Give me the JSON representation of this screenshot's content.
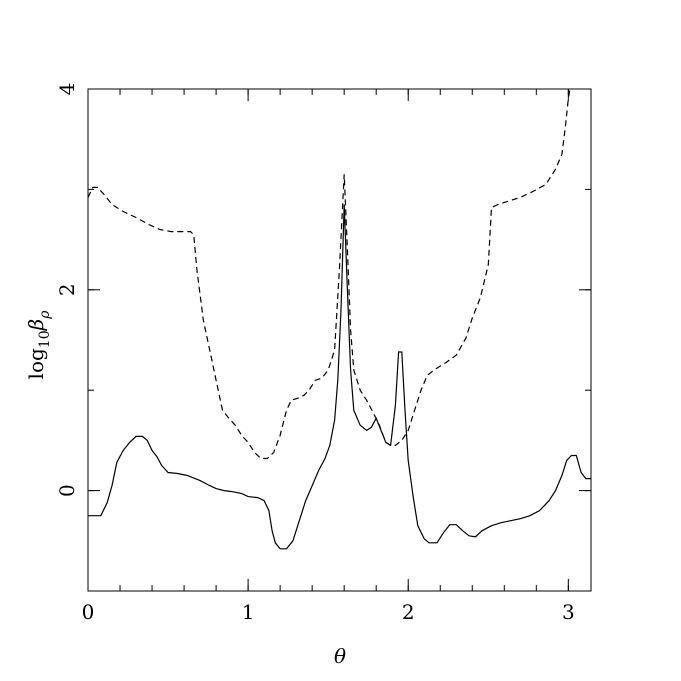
{
  "chart_data": {
    "type": "line",
    "xlabel": "θ",
    "ylabel": "log10βρ",
    "ylabel_parts": {
      "base": "log",
      "sub1": "10",
      "main": "β",
      "sub2": "ρ"
    },
    "xlim": [
      0,
      3.14159
    ],
    "ylim": [
      -1,
      4
    ],
    "x_ticks_major": [
      0,
      1,
      2,
      3
    ],
    "x_tick_labels": [
      "0",
      "1",
      "2",
      "3"
    ],
    "x_ticks_minor_step": 0.2,
    "y_ticks_major": [
      0,
      2,
      4
    ],
    "y_tick_labels": [
      "0",
      "2",
      "4"
    ],
    "y_ticks_minor_step": 1,
    "grid": false,
    "series": [
      {
        "style": "solid",
        "points": [
          [
            0.0,
            -0.25
          ],
          [
            0.08,
            -0.25
          ],
          [
            0.12,
            -0.12
          ],
          [
            0.15,
            0.05
          ],
          [
            0.18,
            0.28
          ],
          [
            0.22,
            0.4
          ],
          [
            0.26,
            0.48
          ],
          [
            0.3,
            0.54
          ],
          [
            0.34,
            0.54
          ],
          [
            0.37,
            0.5
          ],
          [
            0.4,
            0.4
          ],
          [
            0.43,
            0.34
          ],
          [
            0.46,
            0.25
          ],
          [
            0.5,
            0.18
          ],
          [
            0.56,
            0.17
          ],
          [
            0.62,
            0.15
          ],
          [
            0.7,
            0.1
          ],
          [
            0.76,
            0.05
          ],
          [
            0.8,
            0.02
          ],
          [
            0.85,
            0.0
          ],
          [
            0.9,
            -0.01
          ],
          [
            0.96,
            -0.03
          ],
          [
            1.0,
            -0.06
          ],
          [
            1.06,
            -0.07
          ],
          [
            1.1,
            -0.1
          ],
          [
            1.13,
            -0.2
          ],
          [
            1.15,
            -0.4
          ],
          [
            1.17,
            -0.52
          ],
          [
            1.2,
            -0.58
          ],
          [
            1.24,
            -0.58
          ],
          [
            1.28,
            -0.5
          ],
          [
            1.32,
            -0.3
          ],
          [
            1.36,
            -0.1
          ],
          [
            1.4,
            0.05
          ],
          [
            1.44,
            0.2
          ],
          [
            1.48,
            0.32
          ],
          [
            1.51,
            0.45
          ],
          [
            1.54,
            0.7
          ],
          [
            1.56,
            1.1
          ],
          [
            1.58,
            1.8
          ],
          [
            1.6,
            2.85
          ],
          [
            1.62,
            2.0
          ],
          [
            1.64,
            1.2
          ],
          [
            1.66,
            0.8
          ],
          [
            1.7,
            0.65
          ],
          [
            1.74,
            0.6
          ],
          [
            1.77,
            0.63
          ],
          [
            1.8,
            0.72
          ],
          [
            1.83,
            0.6
          ],
          [
            1.86,
            0.48
          ],
          [
            1.89,
            0.45
          ],
          [
            1.92,
            0.85
          ],
          [
            1.94,
            1.38
          ],
          [
            1.96,
            1.38
          ],
          [
            1.98,
            0.8
          ],
          [
            2.0,
            0.3
          ],
          [
            2.03,
            -0.05
          ],
          [
            2.06,
            -0.35
          ],
          [
            2.1,
            -0.48
          ],
          [
            2.13,
            -0.52
          ],
          [
            2.18,
            -0.52
          ],
          [
            2.22,
            -0.42
          ],
          [
            2.26,
            -0.34
          ],
          [
            2.3,
            -0.34
          ],
          [
            2.34,
            -0.4
          ],
          [
            2.38,
            -0.45
          ],
          [
            2.42,
            -0.46
          ],
          [
            2.46,
            -0.4
          ],
          [
            2.52,
            -0.35
          ],
          [
            2.58,
            -0.32
          ],
          [
            2.64,
            -0.3
          ],
          [
            2.7,
            -0.28
          ],
          [
            2.76,
            -0.25
          ],
          [
            2.82,
            -0.2
          ],
          [
            2.88,
            -0.1
          ],
          [
            2.92,
            0.0
          ],
          [
            2.96,
            0.15
          ],
          [
            2.99,
            0.3
          ],
          [
            3.02,
            0.35
          ],
          [
            3.05,
            0.35
          ],
          [
            3.08,
            0.18
          ],
          [
            3.11,
            0.12
          ],
          [
            3.14159,
            0.12
          ]
        ]
      },
      {
        "style": "dashed",
        "points": [
          [
            0.0,
            2.92
          ],
          [
            0.03,
            3.02
          ],
          [
            0.06,
            3.02
          ],
          [
            0.1,
            2.95
          ],
          [
            0.15,
            2.85
          ],
          [
            0.22,
            2.78
          ],
          [
            0.3,
            2.72
          ],
          [
            0.38,
            2.65
          ],
          [
            0.45,
            2.6
          ],
          [
            0.52,
            2.58
          ],
          [
            0.58,
            2.58
          ],
          [
            0.64,
            2.58
          ],
          [
            0.66,
            2.55
          ],
          [
            0.68,
            2.2
          ],
          [
            0.72,
            1.7
          ],
          [
            0.76,
            1.4
          ],
          [
            0.8,
            1.1
          ],
          [
            0.84,
            0.8
          ],
          [
            0.88,
            0.72
          ],
          [
            0.92,
            0.65
          ],
          [
            0.96,
            0.55
          ],
          [
            1.0,
            0.48
          ],
          [
            1.04,
            0.38
          ],
          [
            1.08,
            0.32
          ],
          [
            1.12,
            0.32
          ],
          [
            1.16,
            0.38
          ],
          [
            1.2,
            0.55
          ],
          [
            1.24,
            0.8
          ],
          [
            1.27,
            0.9
          ],
          [
            1.31,
            0.92
          ],
          [
            1.35,
            0.95
          ],
          [
            1.38,
            1.0
          ],
          [
            1.42,
            1.1
          ],
          [
            1.46,
            1.12
          ],
          [
            1.5,
            1.2
          ],
          [
            1.54,
            1.4
          ],
          [
            1.57,
            2.2
          ],
          [
            1.6,
            3.15
          ],
          [
            1.62,
            2.4
          ],
          [
            1.64,
            1.6
          ],
          [
            1.66,
            1.2
          ],
          [
            1.7,
            1.0
          ],
          [
            1.74,
            0.9
          ],
          [
            1.78,
            0.78
          ],
          [
            1.82,
            0.65
          ],
          [
            1.86,
            0.48
          ],
          [
            1.89,
            0.45
          ],
          [
            1.92,
            0.45
          ],
          [
            1.96,
            0.5
          ],
          [
            2.0,
            0.6
          ],
          [
            2.04,
            0.8
          ],
          [
            2.08,
            1.0
          ],
          [
            2.12,
            1.15
          ],
          [
            2.18,
            1.22
          ],
          [
            2.24,
            1.28
          ],
          [
            2.3,
            1.35
          ],
          [
            2.36,
            1.52
          ],
          [
            2.4,
            1.72
          ],
          [
            2.45,
            1.92
          ],
          [
            2.5,
            2.25
          ],
          [
            2.52,
            2.82
          ],
          [
            2.56,
            2.85
          ],
          [
            2.62,
            2.88
          ],
          [
            2.7,
            2.92
          ],
          [
            2.78,
            2.98
          ],
          [
            2.86,
            3.05
          ],
          [
            2.92,
            3.2
          ],
          [
            2.96,
            3.35
          ],
          [
            2.98,
            3.6
          ],
          [
            3.0,
            3.9
          ],
          [
            3.01,
            4.0
          ]
        ]
      }
    ]
  }
}
